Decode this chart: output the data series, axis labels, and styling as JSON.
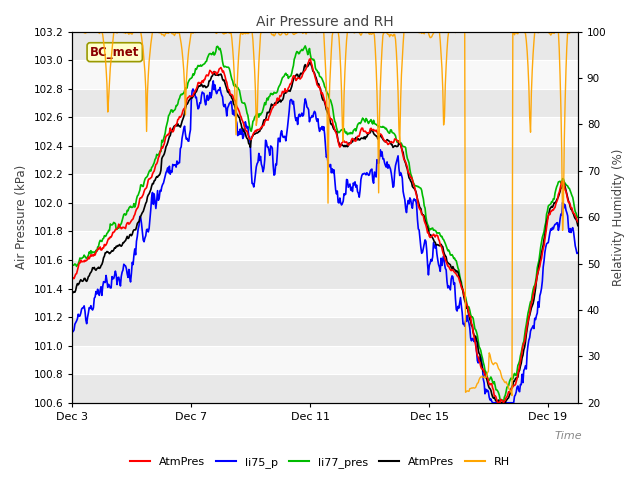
{
  "title": "Air Pressure and RH",
  "xlabel": "Time",
  "ylabel_left": "Air Pressure (kPa)",
  "ylabel_right": "Relativity Humidity (%)",
  "annotation": "BC_met",
  "ylim_left": [
    100.6,
    103.2
  ],
  "ylim_right": [
    20,
    100
  ],
  "yticks_left": [
    100.6,
    100.8,
    101.0,
    101.2,
    101.4,
    101.6,
    101.8,
    102.0,
    102.2,
    102.4,
    102.6,
    102.8,
    103.0,
    103.2
  ],
  "yticks_right": [
    20,
    30,
    40,
    50,
    60,
    70,
    80,
    90,
    100
  ],
  "xtick_labels": [
    "Dec 3",
    "Dec 7",
    "Dec 11",
    "Dec 15",
    "Dec 19"
  ],
  "xtick_positions": [
    0,
    4,
    8,
    12,
    16
  ],
  "colors": {
    "AtmPres_red": "#ff0000",
    "li75_p": "#0000ff",
    "li77_pres": "#00bb00",
    "AtmPres_black": "#000000",
    "RH": "#ffa500"
  },
  "legend": [
    "AtmPres",
    "li75_p",
    "li77_pres",
    "AtmPres",
    "RH"
  ],
  "legend_colors": [
    "#ff0000",
    "#0000ff",
    "#00bb00",
    "#000000",
    "#ffa500"
  ],
  "background_color": "#ffffff",
  "n_points": 600
}
